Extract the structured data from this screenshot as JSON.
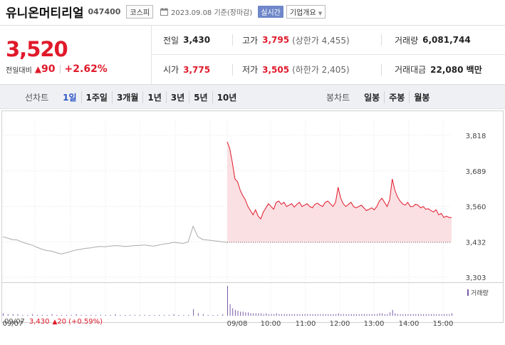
{
  "header": {
    "name": "유니온머티리얼",
    "code": "047400",
    "market": "코스피",
    "date": "2023.09.08 기준(장마감)",
    "realtime": "실시간",
    "overview": "기업개요"
  },
  "summary": {
    "price": "3,520",
    "change_label": "전일대비",
    "change": "90",
    "change_pct": "+2.62%",
    "prev_close_label": "전일",
    "prev_close": "3,430",
    "open_label": "시가",
    "open": "3,775",
    "high_label": "고가",
    "high": "3,795",
    "upper_limit": "(상한가 4,455)",
    "low_label": "저가",
    "low": "3,505",
    "lower_limit": "(하한가 2,405)",
    "volume_label": "거래량",
    "volume": "6,081,744",
    "amount_label": "거래대금",
    "amount": "22,080 백만"
  },
  "periods": {
    "title": "선차트",
    "items": [
      "1일",
      "1주일",
      "3개월",
      "1년",
      "3년",
      "5년",
      "10년"
    ],
    "selected": "1일",
    "candle_title": "봉차트",
    "candle_items": [
      "일봉",
      "주봉",
      "월봉"
    ]
  },
  "colors": {
    "up": "#e0192a",
    "prev_line": "#aaaaaa",
    "area_fill": "#fbe0e3",
    "volume": "#7a5aa8",
    "grid": "#e5e5e5"
  },
  "chart_data": {
    "type": "line",
    "y_ticks": [
      "3,818",
      "3,689",
      "3,560",
      "3,432",
      "3,303"
    ],
    "ylim": [
      3303,
      3818
    ],
    "reference_price": 3430,
    "x_ticks": [
      "09/07",
      "09/08",
      "10:00",
      "11:00",
      "12:00",
      "13:00",
      "14:00",
      "15:00"
    ],
    "volume_label": "거래량",
    "prev_day": {
      "date": "09/07",
      "close": "3,430",
      "change": "20",
      "change_pct": "(+0.59%)",
      "values": [
        3450,
        3445,
        3440,
        3438,
        3430,
        3425,
        3420,
        3412,
        3405,
        3400,
        3398,
        3392,
        3388,
        3392,
        3397,
        3402,
        3405,
        3408,
        3410,
        3413,
        3415,
        3414,
        3416,
        3418,
        3417,
        3415,
        3416,
        3418,
        3419,
        3420,
        3418,
        3416,
        3420,
        3424,
        3426,
        3430,
        3428,
        3426,
        3432,
        3488,
        3450,
        3440,
        3438,
        3436,
        3434,
        3432,
        3430
      ]
    },
    "series": [
      {
        "name": "09/08",
        "values": [
          3795,
          3770,
          3720,
          3660,
          3650,
          3620,
          3600,
          3585,
          3560,
          3545,
          3530,
          3548,
          3525,
          3515,
          3540,
          3555,
          3570,
          3560,
          3550,
          3575,
          3580,
          3568,
          3575,
          3560,
          3565,
          3570,
          3558,
          3568,
          3575,
          3560,
          3565,
          3570,
          3560,
          3555,
          3568,
          3572,
          3565,
          3560,
          3575,
          3580,
          3570,
          3560,
          3575,
          3630,
          3590,
          3570,
          3560,
          3568,
          3575,
          3560,
          3555,
          3560,
          3565,
          3555,
          3545,
          3550,
          3555,
          3548,
          3560,
          3580,
          3590,
          3575,
          3560,
          3585,
          3660,
          3620,
          3595,
          3580,
          3570,
          3565,
          3575,
          3560,
          3560,
          3568,
          3565,
          3555,
          3560,
          3550,
          3552,
          3545,
          3540,
          3548,
          3530,
          3535,
          3520,
          3525,
          3520,
          3520
        ]
      }
    ],
    "volume_prev": [
      3,
      2,
      2,
      2,
      1,
      1,
      2,
      1,
      1,
      1,
      2,
      1,
      1,
      1,
      1,
      2,
      1,
      1,
      1,
      1,
      1,
      1,
      1,
      2,
      1,
      1,
      1,
      1,
      1,
      1,
      1,
      1,
      1,
      1,
      1,
      2,
      1,
      1,
      1,
      8,
      3,
      2,
      1,
      1,
      1,
      2,
      1
    ],
    "volume_today": [
      36,
      14,
      9,
      7,
      6,
      5,
      5,
      4,
      4,
      3,
      3,
      3,
      3,
      3,
      2,
      3,
      2,
      2,
      2,
      3,
      2,
      2,
      2,
      2,
      2,
      2,
      2,
      2,
      2,
      2,
      2,
      2,
      2,
      2,
      2,
      2,
      2,
      2,
      2,
      2,
      2,
      2,
      2,
      3,
      2,
      2,
      2,
      2,
      2,
      2,
      2,
      2,
      2,
      2,
      2,
      2,
      2,
      2,
      2,
      3,
      3,
      2,
      2,
      4,
      7,
      3,
      2,
      2,
      2,
      2,
      2,
      2,
      2,
      2,
      2,
      2,
      2,
      2,
      2,
      2,
      2,
      2,
      2,
      2,
      2,
      2,
      2,
      3
    ]
  }
}
